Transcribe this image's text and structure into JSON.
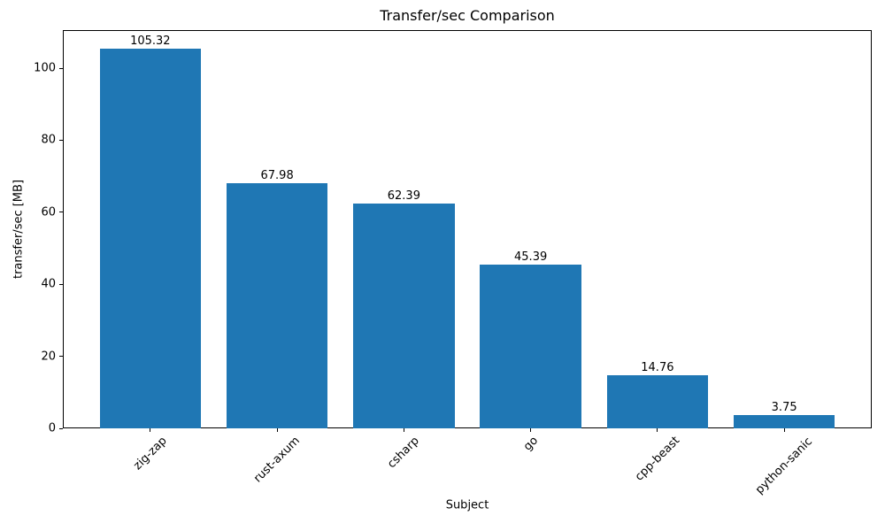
{
  "chart_data": {
    "type": "bar",
    "title": "Transfer/sec Comparison",
    "xlabel": "Subject",
    "ylabel": "transfer/sec [MB]",
    "categories": [
      "zig-zap",
      "rust-axum",
      "csharp",
      "go",
      "cpp-beast",
      "python-sanic"
    ],
    "values": [
      105.32,
      67.98,
      62.39,
      45.39,
      14.76,
      3.75
    ],
    "value_labels": [
      "105.32",
      "67.98",
      "62.39",
      "45.39",
      "14.76",
      "3.75"
    ],
    "ylim": [
      0,
      110.59
    ],
    "yticks": [
      0,
      20,
      40,
      60,
      80,
      100
    ],
    "bar_color": "#1f77b4",
    "grid": false,
    "legend_position": "none"
  }
}
